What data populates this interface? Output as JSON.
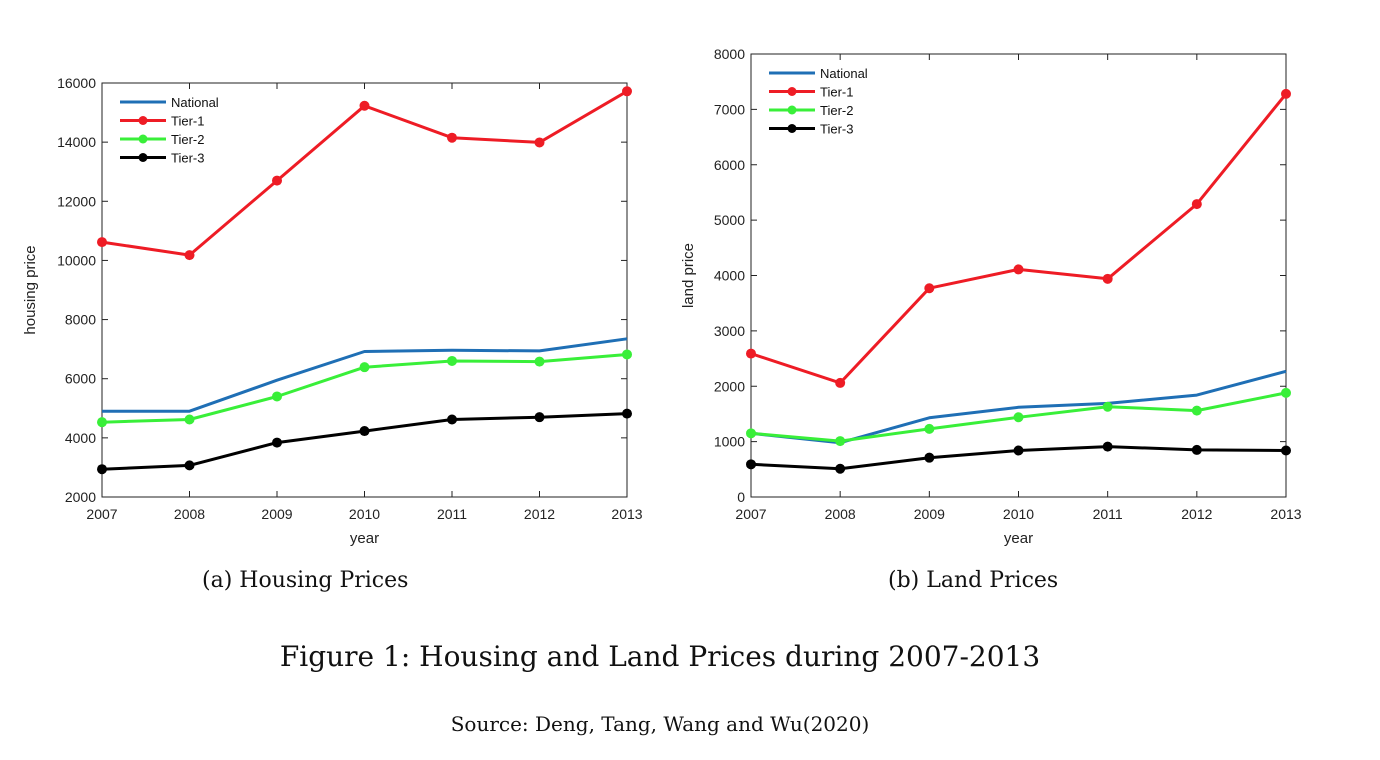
{
  "figure": {
    "caption": "Figure 1: Housing and Land Prices during 2007-2013",
    "source": "Source: Deng, Tang, Wang and Wu(2020)"
  },
  "series_colors": {
    "National": "#1f6fb5",
    "Tier-1": "#ee1c25",
    "Tier-2": "#39ef39",
    "Tier-3": "#000000"
  },
  "chart_data": [
    {
      "type": "line",
      "subcaption": "(a) Housing Prices",
      "xlabel": "year",
      "ylabel": "housing price",
      "x": [
        2007,
        2008,
        2009,
        2010,
        2011,
        2012,
        2013
      ],
      "xlim": [
        2007,
        2013
      ],
      "ylim": [
        2000,
        16000
      ],
      "yticks": [
        2000,
        4000,
        6000,
        8000,
        10000,
        12000,
        14000,
        16000
      ],
      "grid": false,
      "legend_position": "top-left",
      "series": [
        {
          "name": "National",
          "markers": false,
          "values": [
            4900,
            4900,
            5950,
            6920,
            6960,
            6940,
            7350
          ]
        },
        {
          "name": "Tier-1",
          "markers": true,
          "values": [
            10620,
            10180,
            12700,
            15230,
            14150,
            13990,
            15720
          ]
        },
        {
          "name": "Tier-2",
          "markers": true,
          "values": [
            4530,
            4620,
            5400,
            6390,
            6600,
            6580,
            6820
          ]
        },
        {
          "name": "Tier-3",
          "markers": true,
          "values": [
            2940,
            3070,
            3840,
            4230,
            4620,
            4700,
            4820
          ]
        }
      ]
    },
    {
      "type": "line",
      "subcaption": "(b) Land Prices",
      "xlabel": "year",
      "ylabel": "land price",
      "x": [
        2007,
        2008,
        2009,
        2010,
        2011,
        2012,
        2013
      ],
      "xlim": [
        2007,
        2013
      ],
      "ylim": [
        0,
        8000
      ],
      "yticks": [
        0,
        1000,
        2000,
        3000,
        4000,
        5000,
        6000,
        7000,
        8000
      ],
      "grid": false,
      "legend_position": "top-left",
      "series": [
        {
          "name": "National",
          "markers": false,
          "values": [
            1150,
            980,
            1430,
            1620,
            1690,
            1840,
            2270
          ]
        },
        {
          "name": "Tier-1",
          "markers": true,
          "values": [
            2590,
            2060,
            3770,
            4110,
            3940,
            5290,
            7280
          ]
        },
        {
          "name": "Tier-2",
          "markers": true,
          "values": [
            1150,
            1010,
            1230,
            1440,
            1630,
            1560,
            1880
          ]
        },
        {
          "name": "Tier-3",
          "markers": true,
          "values": [
            590,
            510,
            710,
            840,
            910,
            850,
            840
          ]
        }
      ]
    }
  ]
}
